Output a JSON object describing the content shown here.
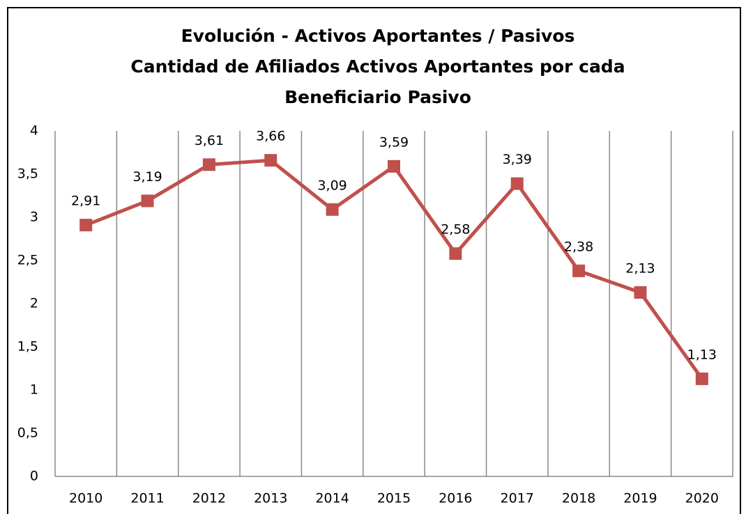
{
  "chart_data": {
    "type": "line",
    "title": [
      "Evolución - Activos Aportantes / Pasivos",
      "Cantidad de Afiliados Activos Aportantes por cada",
      "Beneficiario Pasivo"
    ],
    "categories": [
      "2010",
      "2011",
      "2012",
      "2013",
      "2014",
      "2015",
      "2016",
      "2017",
      "2018",
      "2019",
      "2020"
    ],
    "series": [
      {
        "name": "Activos Aportantes / Pasivos",
        "color": "#c0504d",
        "values": [
          2.91,
          3.19,
          3.61,
          3.66,
          3.09,
          3.59,
          2.58,
          3.39,
          2.38,
          2.13,
          1.13
        ],
        "value_labels": [
          "2,91",
          "3,19",
          "3,61",
          "3,66",
          "3,09",
          "3,59",
          "2,58",
          "3,39",
          "2,38",
          "2,13",
          "1,13"
        ]
      }
    ],
    "ylim": [
      0,
      4
    ],
    "yticks": [
      0,
      {
        "value": 0.5,
        "label": "0,5"
      },
      1,
      {
        "value": 1.5,
        "label": "1,5"
      },
      2,
      {
        "value": 2.5,
        "label": "2,5"
      },
      3,
      {
        "value": 3.5,
        "label": "3,5"
      },
      4
    ],
    "grid": "vertical"
  }
}
